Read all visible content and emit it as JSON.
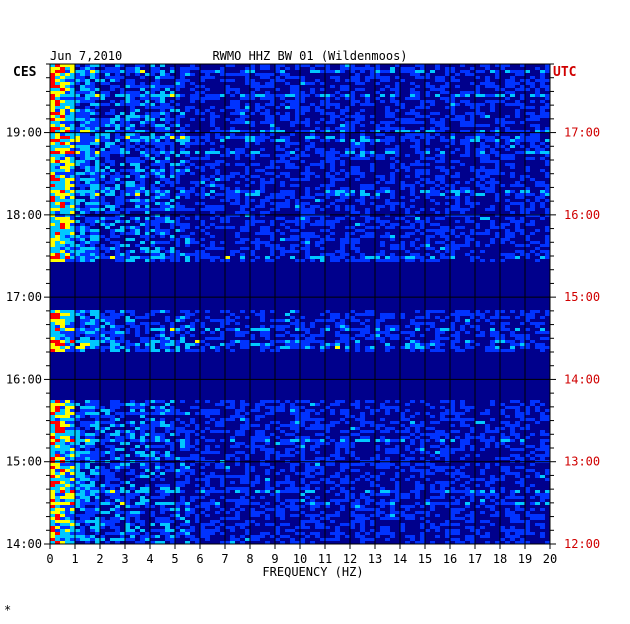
{
  "chart_data": {
    "type": "heatmap",
    "date": "Jun 7,2010",
    "title": "RWMO HHZ BW 01 (Wildenmoos)",
    "xlabel": "FREQUENCY (HZ)",
    "left_axis_label": "CES",
    "right_axis_label": "UTC",
    "xlim": [
      0,
      20
    ],
    "x_ticks": [
      "0",
      "1",
      "2",
      "3",
      "4",
      "5",
      "6",
      "7",
      "8",
      "9",
      "10",
      "11",
      "12",
      "13",
      "14",
      "15",
      "16",
      "17",
      "18",
      "19",
      "20"
    ],
    "left_y_ticks": [
      "19:00",
      "18:00",
      "17:00",
      "16:00",
      "15:00",
      "14:00"
    ],
    "right_y_ticks": [
      "17:00",
      "16:00",
      "15:00",
      "14:00",
      "13:00",
      "12:00"
    ],
    "time_range_ces": [
      "14:00",
      "19:50"
    ],
    "gaps_ces": [
      [
        "16:50",
        "17:25"
      ],
      [
        "15:45",
        "16:20"
      ]
    ],
    "grid": true,
    "colormap": [
      "#00008c",
      "#0033ff",
      "#00c8ff",
      "#ffff00",
      "#ff0000"
    ]
  },
  "footer": {
    "mark": "*"
  }
}
